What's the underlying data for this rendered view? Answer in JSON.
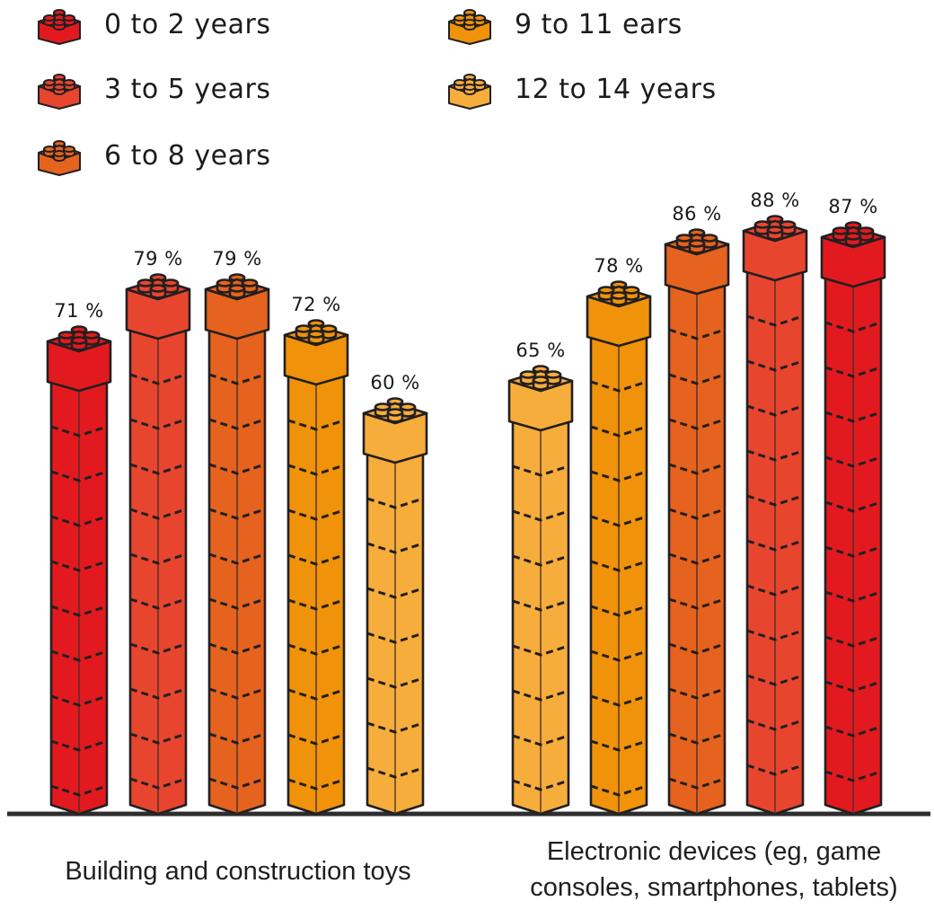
{
  "legend": {
    "items": [
      {
        "label": "0 to 2 years",
        "color": "#e21a1f"
      },
      {
        "label": "3 to 5 years",
        "color": "#e8452f"
      },
      {
        "label": "6 to 8 years",
        "color": "#e5631e"
      },
      {
        "label": "9 to 11 ears",
        "color": "#f0930a"
      },
      {
        "label": "12 to 14 years",
        "color": "#f6ad3b"
      }
    ]
  },
  "chart_data": {
    "type": "bar",
    "title": "",
    "unit": "percent",
    "ylim": [
      0,
      100
    ],
    "grid": false,
    "legend_position": "top-left",
    "bar_style": "lego-brick-tower",
    "outline_color": "#231f20",
    "baseline_color": "#2d2d2d",
    "groups": [
      {
        "label": "Building and construction toys",
        "label_lines": [
          "Building and construction toys"
        ],
        "bars": [
          {
            "age_group": "0 to 2 years",
            "value": 71,
            "value_label": "71 %",
            "color": "#e21a1f"
          },
          {
            "age_group": "3 to 5 years",
            "value": 79,
            "value_label": "79 %",
            "color": "#e8452f"
          },
          {
            "age_group": "6 to 8 years",
            "value": 79,
            "value_label": "79 %",
            "color": "#e5631e"
          },
          {
            "age_group": "9 to 11 ears",
            "value": 72,
            "value_label": "72 %",
            "color": "#f0930a"
          },
          {
            "age_group": "12 to 14 years",
            "value": 60,
            "value_label": "60 %",
            "color": "#f6ad3b"
          }
        ]
      },
      {
        "label": "Electronic devices (eg, game consoles, smartphones, tablets)",
        "label_lines": [
          "Electronic devices (eg, game",
          "consoles, smartphones, tablets)"
        ],
        "bars": [
          {
            "age_group": "12 to 14 years",
            "value": 65,
            "value_label": "65 %",
            "color": "#f6ad3b"
          },
          {
            "age_group": "9 to 11 ears",
            "value": 78,
            "value_label": "78 %",
            "color": "#f0930a"
          },
          {
            "age_group": "6 to 8 years",
            "value": 86,
            "value_label": "86 %",
            "color": "#e5631e"
          },
          {
            "age_group": "3 to 5 years",
            "value": 88,
            "value_label": "88 %",
            "color": "#e8452f"
          },
          {
            "age_group": "0 to 2 years",
            "value": 87,
            "value_label": "87 %",
            "color": "#e21a1f"
          }
        ]
      }
    ]
  }
}
